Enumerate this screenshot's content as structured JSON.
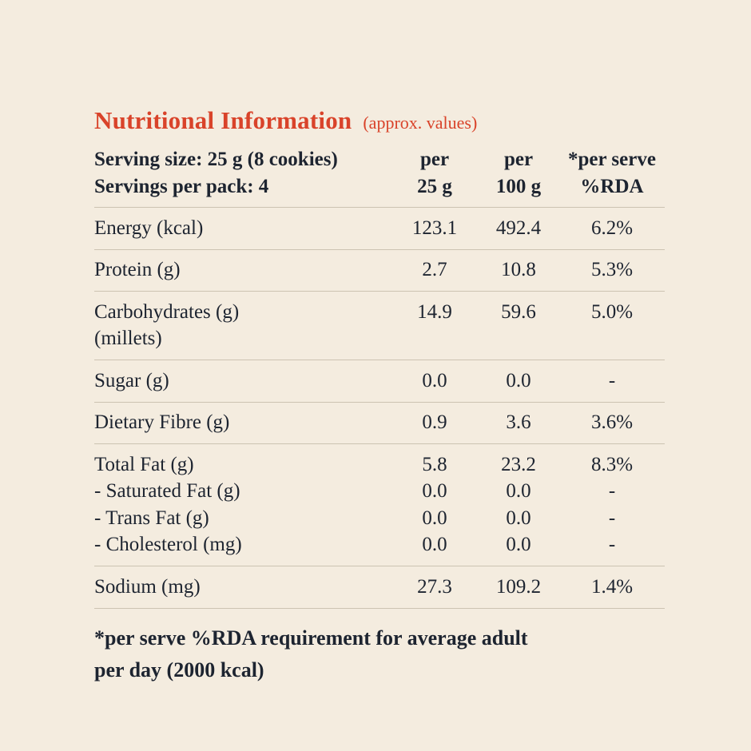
{
  "page": {
    "background_color": "#f4ecdf",
    "text_color": "#1d2430",
    "accent_color": "#d9432a",
    "divider_color": "#ccc3b2"
  },
  "title": {
    "text": "Nutritional Information",
    "suffix": "(approx. values)"
  },
  "header": {
    "serving_line1": "Serving size: 25 g (8 cookies)",
    "serving_line2": "Servings per pack: 4",
    "columns": [
      {
        "line1": "per",
        "line2": "25 g"
      },
      {
        "line1": "per",
        "line2": "100 g"
      },
      {
        "line1": "*per serve",
        "line2": "%RDA"
      }
    ]
  },
  "table": {
    "rows": [
      {
        "lines": [
          {
            "label": "Energy (kcal)",
            "per25": "123.1",
            "per100": "492.4",
            "rda": "6.2%"
          }
        ]
      },
      {
        "lines": [
          {
            "label": "Protein (g)",
            "per25": "2.7",
            "per100": "10.8",
            "rda": "5.3%"
          }
        ]
      },
      {
        "lines": [
          {
            "label": "Carbohydrates (g)",
            "per25": "14.9",
            "per100": "59.6",
            "rda": "5.0%"
          },
          {
            "label": "(millets)",
            "per25": "",
            "per100": "",
            "rda": ""
          }
        ]
      },
      {
        "lines": [
          {
            "label": "Sugar (g)",
            "per25": "0.0",
            "per100": "0.0",
            "rda": "-"
          }
        ]
      },
      {
        "lines": [
          {
            "label": "Dietary Fibre (g)",
            "per25": "0.9",
            "per100": "3.6",
            "rda": "3.6%"
          }
        ]
      },
      {
        "lines": [
          {
            "label": "Total Fat (g)",
            "per25": "5.8",
            "per100": "23.2",
            "rda": "8.3%"
          },
          {
            "label": "- Saturated Fat (g)",
            "per25": "0.0",
            "per100": "0.0",
            "rda": "-"
          },
          {
            "label": "- Trans Fat (g)",
            "per25": "0.0",
            "per100": "0.0",
            "rda": "-"
          },
          {
            "label": "- Cholesterol (mg)",
            "per25": "0.0",
            "per100": "0.0",
            "rda": "-"
          }
        ]
      },
      {
        "lines": [
          {
            "label": "Sodium (mg)",
            "per25": "27.3",
            "per100": "109.2",
            "rda": "1.4%"
          }
        ]
      }
    ]
  },
  "footnote": {
    "line1": "*per serve %RDA requirement for average adult",
    "line2": "per day (2000 kcal)"
  }
}
